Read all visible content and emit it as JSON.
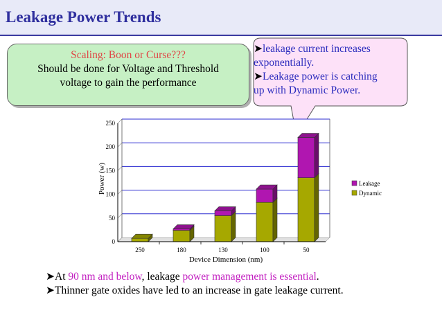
{
  "title": "Leakage Power Trends",
  "green_box": {
    "line1": "Scaling: Boon or Curse???",
    "line2": "Should be done for Voltage and Threshold",
    "line3": "voltage to gain the performance"
  },
  "callout": {
    "line1": "leakage current increases",
    "line2": "exponentially.",
    "line3": "Leakage power is catching",
    "line4": "up with Dynamic Power."
  },
  "bullets": {
    "b1_prefix": "At ",
    "b1_highlight1": "90 nm and below",
    "b1_mid": ", leakage ",
    "b1_highlight2": "power management is essential",
    "b1_end": ".",
    "b2": "Thinner gate oxides have led to an increase in gate leakage current."
  },
  "colors": {
    "dynamic": "#a6a800",
    "leakage": "#b016b0",
    "title": "#2f2f9e"
  },
  "chart_data": {
    "type": "bar",
    "stacked": true,
    "categories": [
      "250",
      "180",
      "130",
      "100",
      "50"
    ],
    "series": [
      {
        "name": "Dynamic",
        "values": [
          7,
          24,
          55,
          83,
          135
        ]
      },
      {
        "name": "Leakage",
        "values": [
          0,
          3,
          10,
          28,
          85
        ]
      }
    ],
    "xlabel": "Device Dimension (nm)",
    "ylabel": "Power (w)",
    "ylim": [
      0,
      250
    ],
    "yticks": [
      0,
      50,
      100,
      150,
      200,
      250
    ],
    "grid": true,
    "legend_placement": "right"
  }
}
